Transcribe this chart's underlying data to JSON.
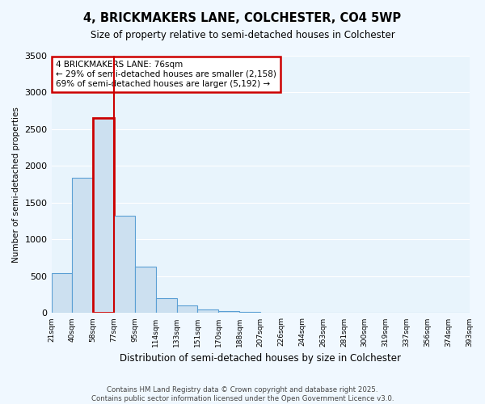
{
  "title1": "4, BRICKMAKERS LANE, COLCHESTER, CO4 5WP",
  "title2": "Size of property relative to semi-detached houses in Colchester",
  "xlabel": "Distribution of semi-detached houses by size in Colchester",
  "ylabel": "Number of semi-detached properties",
  "bar_values": [
    540,
    1840,
    2650,
    1320,
    630,
    200,
    100,
    50,
    30,
    15,
    10,
    5,
    3,
    2,
    1,
    1,
    0,
    0,
    0,
    0
  ],
  "bin_labels": [
    "21sqm",
    "40sqm",
    "58sqm",
    "77sqm",
    "95sqm",
    "114sqm",
    "133sqm",
    "151sqm",
    "170sqm",
    "188sqm",
    "207sqm",
    "226sqm",
    "244sqm",
    "263sqm",
    "281sqm",
    "300sqm",
    "319sqm",
    "337sqm",
    "356sqm",
    "374sqm",
    "393sqm"
  ],
  "bar_color": "#cce0f0",
  "bar_edge_color": "#5a9fd4",
  "highlight_bar_index": 2,
  "highlight_color": "#cc0000",
  "annotation_text": "4 BRICKMAKERS LANE: 76sqm\n← 29% of semi-detached houses are smaller (2,158)\n69% of semi-detached houses are larger (5,192) →",
  "annotation_box_color": "#ffffff",
  "annotation_edge_color": "#cc0000",
  "property_line_x": 2.5,
  "ylim": [
    0,
    3500
  ],
  "yticks": [
    0,
    500,
    1000,
    1500,
    2000,
    2500,
    3000,
    3500
  ],
  "footnote": "Contains HM Land Registry data © Crown copyright and database right 2025.\nContains public sector information licensed under the Open Government Licence v3.0.",
  "bg_color": "#f0f8ff",
  "plot_bg_color": "#e8f4fc"
}
